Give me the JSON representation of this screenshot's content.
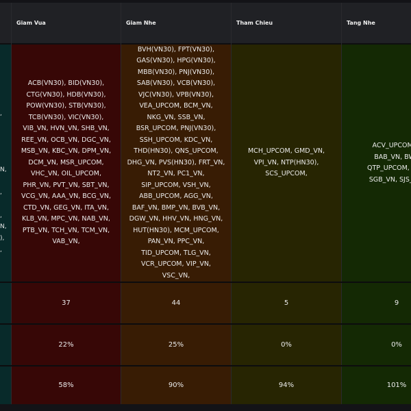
{
  "columns": [
    {
      "header": "Giam Vua",
      "list": "ACB(VN30), BID(VN30),\nCTG(VN30), HDB(VN30),\nPOW(VN30), STB(VN30),\nTCB(VN30), VIC(VN30),\nVIB_VN, HVN_VN, SHB_VN,\nREE_VN, OCB_VN, DGC_VN,\nMSB_VN, KBC_VN, DPM_VN,\nDCM_VN, MSR_UPCOM,\nVHC_VN, OIL_UPCOM,\nPHR_VN, PVT_VN, SBT_VN,\nVCG_VN, AAA_VN, BCG_VN,\nCTD_VN, GEG_VN, ITA_VN,\nKLB_VN, MPC_VN, NAB_VN,\nPTB_VN, TCH_VN, TCM_VN,\nVAB_VN,",
      "count": "37",
      "pct1": "22%",
      "pct2": "58%"
    },
    {
      "header": "Giam Nhe",
      "list": "BVH(VN30), FPT(VN30),\nGAS(VN30), HPG(VN30),\nMBB(VN30), PNJ(VN30),\nSAB(VN30), VCB(VN30),\nVJC(VN30), VPB(VN30),\nVEA_UPCOM, BCM_VN,\nNKG_VN, SSB_VN,\nBSR_UPCOM, PNJ(VN30),\nSSH_UPCOM, KDC_VN,\nTHD(HN30), QNS_UPCOM,\nDHG_VN, PVS(HN30), FRT_VN,\nNT2_VN, PC1_VN,\nSIP_UPCOM, VSH_VN,\nABB_UPCOM, AGG_VN,\nBAF_VN, BMP_VN, BVB_VN,\nDGW_VN, HHV_VN, HNG_VN,\nHUT(HN30), MCM_UPCOM,\nPAN_VN, PPC_VN,\nTID_UPCOM, TLG_VN,\nVCR_UPCOM, VIP_VN,\nVSC_VN,",
      "count": "44",
      "pct1": "25%",
      "pct2": "90%"
    },
    {
      "header": "Tham Chieu",
      "list": "MCH_UPCOM, GMD_VN,\nVPI_VN, NTP(HN30),\nSCS_UPCOM,",
      "count": "5",
      "pct1": "0%",
      "pct2": "94%"
    },
    {
      "header": "Tang Nhe",
      "list": "ACV_UPCOM, P\nBAB_VN, BWE\nQTP_UPCOM, DBD\nSGB_VN, SJS_VN,",
      "count": "9",
      "pct1": "0%",
      "pct2": "101%"
    }
  ],
  "left_clip_text": [
    ",",
    "N,",
    ",",
    ",",
    "N,",
    "),",
    ","
  ],
  "colors": {
    "giam_vua_bg": "#370706",
    "giam_nhe_bg": "#381c04",
    "tham_chieu_bg": "#272502",
    "tang_nhe_bg": "#142904",
    "left_col_bg": "#082a2a",
    "header_bg": "#202125"
  }
}
